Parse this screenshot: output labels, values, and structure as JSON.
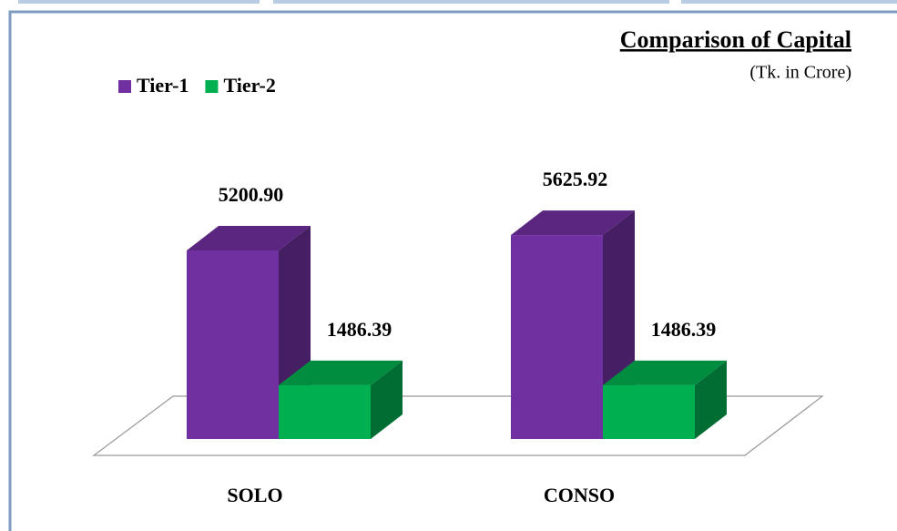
{
  "chart_data": {
    "type": "bar3d",
    "title": "Comparison of Capital",
    "subtitle": "(Tk. in Crore)",
    "categories": [
      "SOLO",
      "CONSO"
    ],
    "series": [
      {
        "name": "Tier-1",
        "color": "#7030a0",
        "values": [
          5200.9,
          5625.92
        ],
        "value_labels": [
          "5200.90",
          "5625.92"
        ]
      },
      {
        "name": "Tier-2",
        "color": "#00b050",
        "values": [
          1486.39,
          1486.39
        ],
        "value_labels": [
          "1486.39",
          "1486.39"
        ]
      }
    ],
    "legend": "top-left"
  }
}
